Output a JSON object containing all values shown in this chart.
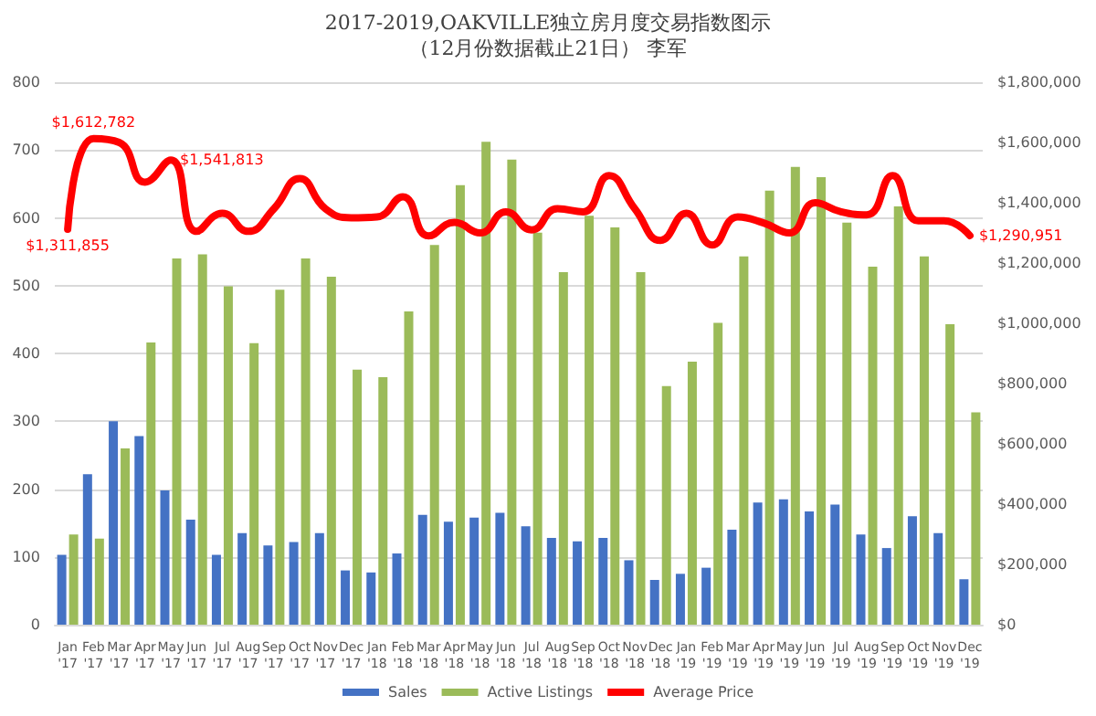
{
  "chart_data": {
    "type": "bar",
    "title": "2017-2019,OAKVILLE独立房月度交易指数图示",
    "subtitle": "（12月份数据截止21日） 李军",
    "categories": [
      "Jan '17",
      "Feb '17",
      "Mar '17",
      "Apr '17",
      "May '17",
      "Jun '17",
      "Jul '17",
      "Aug '17",
      "Sep '17",
      "Oct '17",
      "Nov '17",
      "Dec '17",
      "Jan '18",
      "Feb '18",
      "Mar '18",
      "Apr '18",
      "May '18",
      "Jun '18",
      "Jul '18",
      "Aug '18",
      "Sep '18",
      "Oct '18",
      "Nov '18",
      "Dec '18",
      "Jan '19",
      "Feb '19",
      "Mar '19",
      "Apr '19",
      "May '19",
      "Jun '19",
      "Jul '19",
      "Aug '19",
      "Sep '19",
      "Oct '19",
      "Nov '19",
      "Dec '19"
    ],
    "series": [
      {
        "name": "Sales",
        "color": "#4472c4",
        "values": [
          103,
          222,
          300,
          278,
          198,
          155,
          103,
          135,
          117,
          122,
          135,
          80,
          77,
          105,
          162,
          152,
          158,
          165,
          145,
          128,
          123,
          128,
          95,
          66,
          75,
          84,
          140,
          180,
          185,
          167,
          177,
          133,
          113,
          160,
          135,
          67
        ]
      },
      {
        "name": "Active Listings",
        "color": "#9bbb59",
        "values": [
          133,
          127,
          260,
          416,
          540,
          546,
          499,
          415,
          494,
          540,
          513,
          376,
          365,
          462,
          560,
          648,
          712,
          686,
          578,
          520,
          603,
          586,
          520,
          352,
          388,
          445,
          543,
          640,
          675,
          660,
          593,
          528,
          617,
          543,
          443,
          313
        ]
      },
      {
        "name": "Average Price",
        "type": "line",
        "axis": "y2",
        "color": "#ff0000",
        "values": [
          1311855,
          1612782,
          1600000,
          1468000,
          1541813,
          1305000,
          1365000,
          1305000,
          1380000,
          1480000,
          1380000,
          1350000,
          1353000,
          1420000,
          1290000,
          1335000,
          1300000,
          1370000,
          1310000,
          1380000,
          1370000,
          1490000,
          1380000,
          1275000,
          1365000,
          1260000,
          1353000,
          1333000,
          1300000,
          1400000,
          1370000,
          1360000,
          1490000,
          1340000,
          1340000,
          1290951
        ],
        "value_labels": [
          "$1,311,855",
          "$1,612,782",
          null,
          null,
          "$1,541,813",
          null,
          null,
          null,
          null,
          null,
          null,
          null,
          null,
          null,
          null,
          null,
          null,
          null,
          null,
          null,
          null,
          null,
          null,
          null,
          null,
          null,
          null,
          null,
          null,
          null,
          null,
          null,
          null,
          null,
          null,
          "$1,290,951"
        ]
      }
    ],
    "ylim": [
      0,
      800
    ],
    "yticks": [
      0,
      100,
      200,
      300,
      400,
      500,
      600,
      700,
      800
    ],
    "y2lim": [
      0,
      1800000
    ],
    "y2ticks": [
      {
        "value": 0,
        "label": "$0"
      },
      {
        "value": 200000,
        "label": "$200,000"
      },
      {
        "value": 400000,
        "label": "$400,000"
      },
      {
        "value": 600000,
        "label": "$600,000"
      },
      {
        "value": 800000,
        "label": "$800,000"
      },
      {
        "value": 1000000,
        "label": "$1,000,000"
      },
      {
        "value": 1200000,
        "label": "$1,200,000"
      },
      {
        "value": 1400000,
        "label": "$1,400,000"
      },
      {
        "value": 1600000,
        "label": "$1,600,000"
      },
      {
        "value": 1800000,
        "label": "$1,800,000"
      }
    ],
    "grid": "y",
    "legend": "bottom",
    "marker": "none",
    "line_style": "solid"
  }
}
